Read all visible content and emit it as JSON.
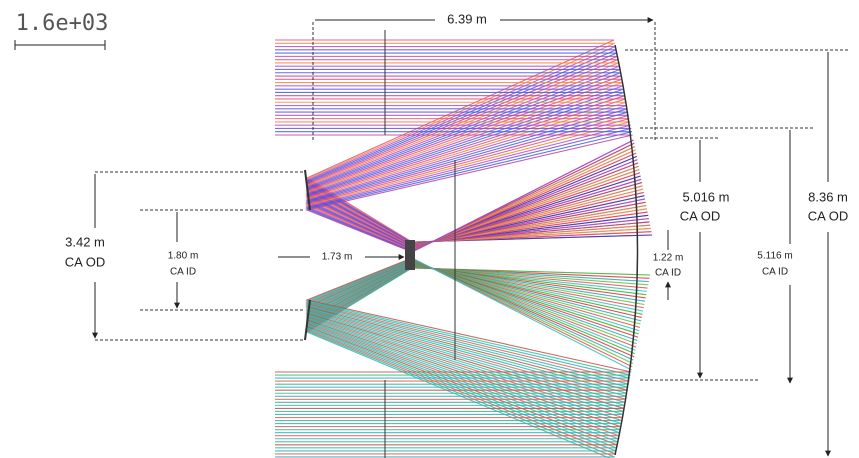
{
  "scale_label": "1.6e+03",
  "dimensions": [
    {
      "length": "6.39 m"
    },
    {
      "length": "3.42 m",
      "note": "CA OD"
    },
    {
      "length": "1.80 m",
      "note": "CA ID"
    },
    {
      "length": "1.73 m"
    },
    {
      "length": "5.016 m",
      "note": "CA OD"
    },
    {
      "length": "1.22 m",
      "note": "CA ID"
    },
    {
      "length": "8.36 m",
      "note": "CA OD"
    },
    {
      "length": "5.116 m",
      "note": "CA ID"
    }
  ]
}
